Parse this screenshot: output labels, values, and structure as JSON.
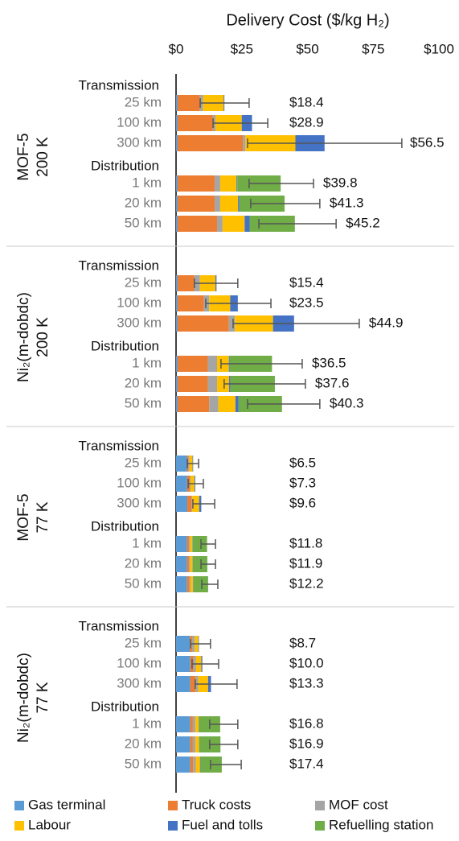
{
  "chart_data": {
    "type": "bar",
    "orientation": "horizontal",
    "title": "Delivery Cost ($/kg H₂)",
    "xlim": [
      0,
      100
    ],
    "xticks": [
      {
        "value": 0,
        "label": "$0"
      },
      {
        "value": 25,
        "label": "$25"
      },
      {
        "value": 50,
        "label": "$50"
      },
      {
        "value": 75,
        "label": "$75"
      },
      {
        "value": 100,
        "label": "$100"
      }
    ],
    "grid": false,
    "legend": "bottom",
    "series": [
      {
        "name": "Gas terminal",
        "color": "#5b9bd5"
      },
      {
        "name": "Truck costs",
        "color": "#ed7d31"
      },
      {
        "name": "MOF cost",
        "color": "#a5a5a5"
      },
      {
        "name": "Labour",
        "color": "#ffc000"
      },
      {
        "name": "Fuel and tolls",
        "color": "#4472c4"
      },
      {
        "name": "Refuelling station",
        "color": "#70ad47"
      }
    ],
    "panels": [
      {
        "label": "MOF-5",
        "sublabel": "200 K",
        "groups": [
          {
            "name": "Transmission",
            "bars": [
              {
                "category": "25 km",
                "segments": [
                  0.6,
                  8.5,
                  1.2,
                  7.8,
                  0.3,
                  0
                ],
                "value": 18.4,
                "value_label": "$18.4",
                "error": [
                  9.2,
                  27.8
                ]
              },
              {
                "category": "100 km",
                "segments": [
                  0.6,
                  13.4,
                  1,
                  10,
                  3.9,
                  0
                ],
                "value": 28.9,
                "value_label": "$28.9",
                "error": [
                  14.1,
                  34.9
                ]
              },
              {
                "category": "300 km",
                "segments": [
                  0.6,
                  24.8,
                  1,
                  19,
                  11.1,
                  0
                ],
                "value": 56.5,
                "value_label": "$56.5",
                "error": [
                  27.2,
                  85.9
                ]
              }
            ]
          },
          {
            "name": "Distribution",
            "bars": [
              {
                "category": "1 km",
                "segments": [
                  0.6,
                  14.1,
                  2.1,
                  6.2,
                  0.3,
                  16.5
                ],
                "value": 39.8,
                "value_label": "$39.8",
                "error": [
                  27.8,
                  52.3
                ]
              },
              {
                "category": "20 km",
                "segments": [
                  0.6,
                  14.1,
                  2.1,
                  6.8,
                  0.5,
                  17.2
                ],
                "value": 41.3,
                "value_label": "$41.3",
                "error": [
                  28.4,
                  54.7
                ]
              },
              {
                "category": "50 km",
                "segments": [
                  0.6,
                  15,
                  2.1,
                  8.4,
                  1.9,
                  17.2
                ],
                "value": 45.2,
                "value_label": "$45.2",
                "error": [
                  31.5,
                  60.9
                ]
              }
            ]
          }
        ]
      },
      {
        "label": "Ni₂(m-dobdc)",
        "sublabel": "200 K",
        "groups": [
          {
            "name": "Transmission",
            "bars": [
              {
                "category": "25 km",
                "segments": [
                  0.6,
                  6.3,
                  2.2,
                  5.9,
                  0.4,
                  0
                ],
                "value": 15.4,
                "value_label": "$15.4",
                "error": [
                  7,
                  23.5
                ]
              },
              {
                "category": "100 km",
                "segments": [
                  0.6,
                  10,
                  2,
                  8,
                  2.9,
                  0
                ],
                "value": 23.5,
                "value_label": "$23.5",
                "error": [
                  11.3,
                  36.1
                ]
              },
              {
                "category": "300 km",
                "segments": [
                  0.6,
                  19.5,
                  2.3,
                  14.5,
                  8,
                  0
                ],
                "value": 44.9,
                "value_label": "$44.9",
                "error": [
                  21.7,
                  69.7
                ]
              }
            ]
          },
          {
            "name": "Distribution",
            "bars": [
              {
                "category": "1 km",
                "segments": [
                  0.6,
                  11.5,
                  3.5,
                  4.5,
                  0.3,
                  16.1
                ],
                "value": 36.5,
                "value_label": "$36.5",
                "error": [
                  17.1,
                  48
                ]
              },
              {
                "category": "20 km",
                "segments": [
                  0.6,
                  11.5,
                  3.5,
                  4.6,
                  0.5,
                  16.9
                ],
                "value": 37.6,
                "value_label": "$37.6",
                "error": [
                  18.3,
                  49.2
                ]
              },
              {
                "category": "50 km",
                "segments": [
                  0.6,
                  12,
                  3.5,
                  6.5,
                  1.2,
                  16.5
                ],
                "value": 40.3,
                "value_label": "$40.3",
                "error": [
                  27.2,
                  54.7
                ]
              }
            ]
          }
        ]
      },
      {
        "label": "MOF-5",
        "sublabel": "77 K",
        "groups": [
          {
            "name": "Transmission",
            "bars": [
              {
                "category": "25 km",
                "segments": [
                  4.2,
                  0.6,
                  0.3,
                  1.2,
                  0.2,
                  0
                ],
                "value": 6.5,
                "value_label": "$6.5",
                "error": [
                  4.3,
                  8.6
                ]
              },
              {
                "category": "100 km",
                "segments": [
                  4.2,
                  1,
                  0.3,
                  1.5,
                  0.3,
                  0
                ],
                "value": 7.3,
                "value_label": "$7.3",
                "error": [
                  4.6,
                  10.4
                ]
              },
              {
                "category": "300 km",
                "segments": [
                  4.3,
                  1.6,
                  0.3,
                  2.6,
                  0.8,
                  0
                ],
                "value": 9.6,
                "value_label": "$9.6",
                "error": [
                  6.4,
                  14.7
                ]
              }
            ]
          },
          {
            "name": "Distribution",
            "bars": [
              {
                "category": "1 km",
                "segments": [
                  4.2,
                  0.8,
                  0.4,
                  0.8,
                  0.1,
                  5.5
                ],
                "value": 11.8,
                "value_label": "$11.8",
                "error": [
                  9.5,
                  15
                ]
              },
              {
                "category": "20 km",
                "segments": [
                  4.2,
                  0.8,
                  0.4,
                  0.9,
                  0.1,
                  5.5
                ],
                "value": 11.9,
                "value_label": "$11.9",
                "error": [
                  9.5,
                  15
                ]
              },
              {
                "category": "50 km",
                "segments": [
                  4.2,
                  0.9,
                  0.4,
                  1,
                  0.2,
                  5.5
                ],
                "value": 12.2,
                "value_label": "$12.2",
                "error": [
                  9.8,
                  15.9
                ]
              }
            ]
          }
        ]
      },
      {
        "label": "Ni₂(m-dobdc)",
        "sublabel": "77 K",
        "groups": [
          {
            "name": "Transmission",
            "bars": [
              {
                "category": "25 km",
                "segments": [
                  5.3,
                  0.8,
                  1,
                  1.4,
                  0.2,
                  0
                ],
                "value": 8.7,
                "value_label": "$8.7",
                "error": [
                  5.5,
                  13.1
                ]
              },
              {
                "category": "100 km",
                "segments": [
                  5.4,
                  1.2,
                  1,
                  2,
                  0.4,
                  0
                ],
                "value": 10,
                "value_label": "$10.0",
                "error": [
                  6.1,
                  16.2
                ]
              },
              {
                "category": "300 km",
                "segments": [
                  5.4,
                  2,
                  1,
                  3.8,
                  1.1,
                  0
                ],
                "value": 13.3,
                "value_label": "$13.3",
                "error": [
                  7.3,
                  23.2
                ]
              }
            ]
          },
          {
            "name": "Distribution",
            "bars": [
              {
                "category": "1 km",
                "segments": [
                  5.4,
                  1,
                  1,
                  1.2,
                  0.1,
                  8.1
                ],
                "value": 16.8,
                "value_label": "$16.8",
                "error": [
                  12.8,
                  23.5
                ]
              },
              {
                "category": "20 km",
                "segments": [
                  5.4,
                  1,
                  1,
                  1.3,
                  0.1,
                  8.1
                ],
                "value": 16.9,
                "value_label": "$16.9",
                "error": [
                  12.8,
                  23.5
                ]
              },
              {
                "category": "50 km",
                "segments": [
                  5.4,
                  1.1,
                  1,
                  1.6,
                  0.2,
                  8.1
                ],
                "value": 17.4,
                "value_label": "$17.4",
                "error": [
                  13.1,
                  24.8
                ]
              }
            ]
          }
        ]
      }
    ]
  }
}
